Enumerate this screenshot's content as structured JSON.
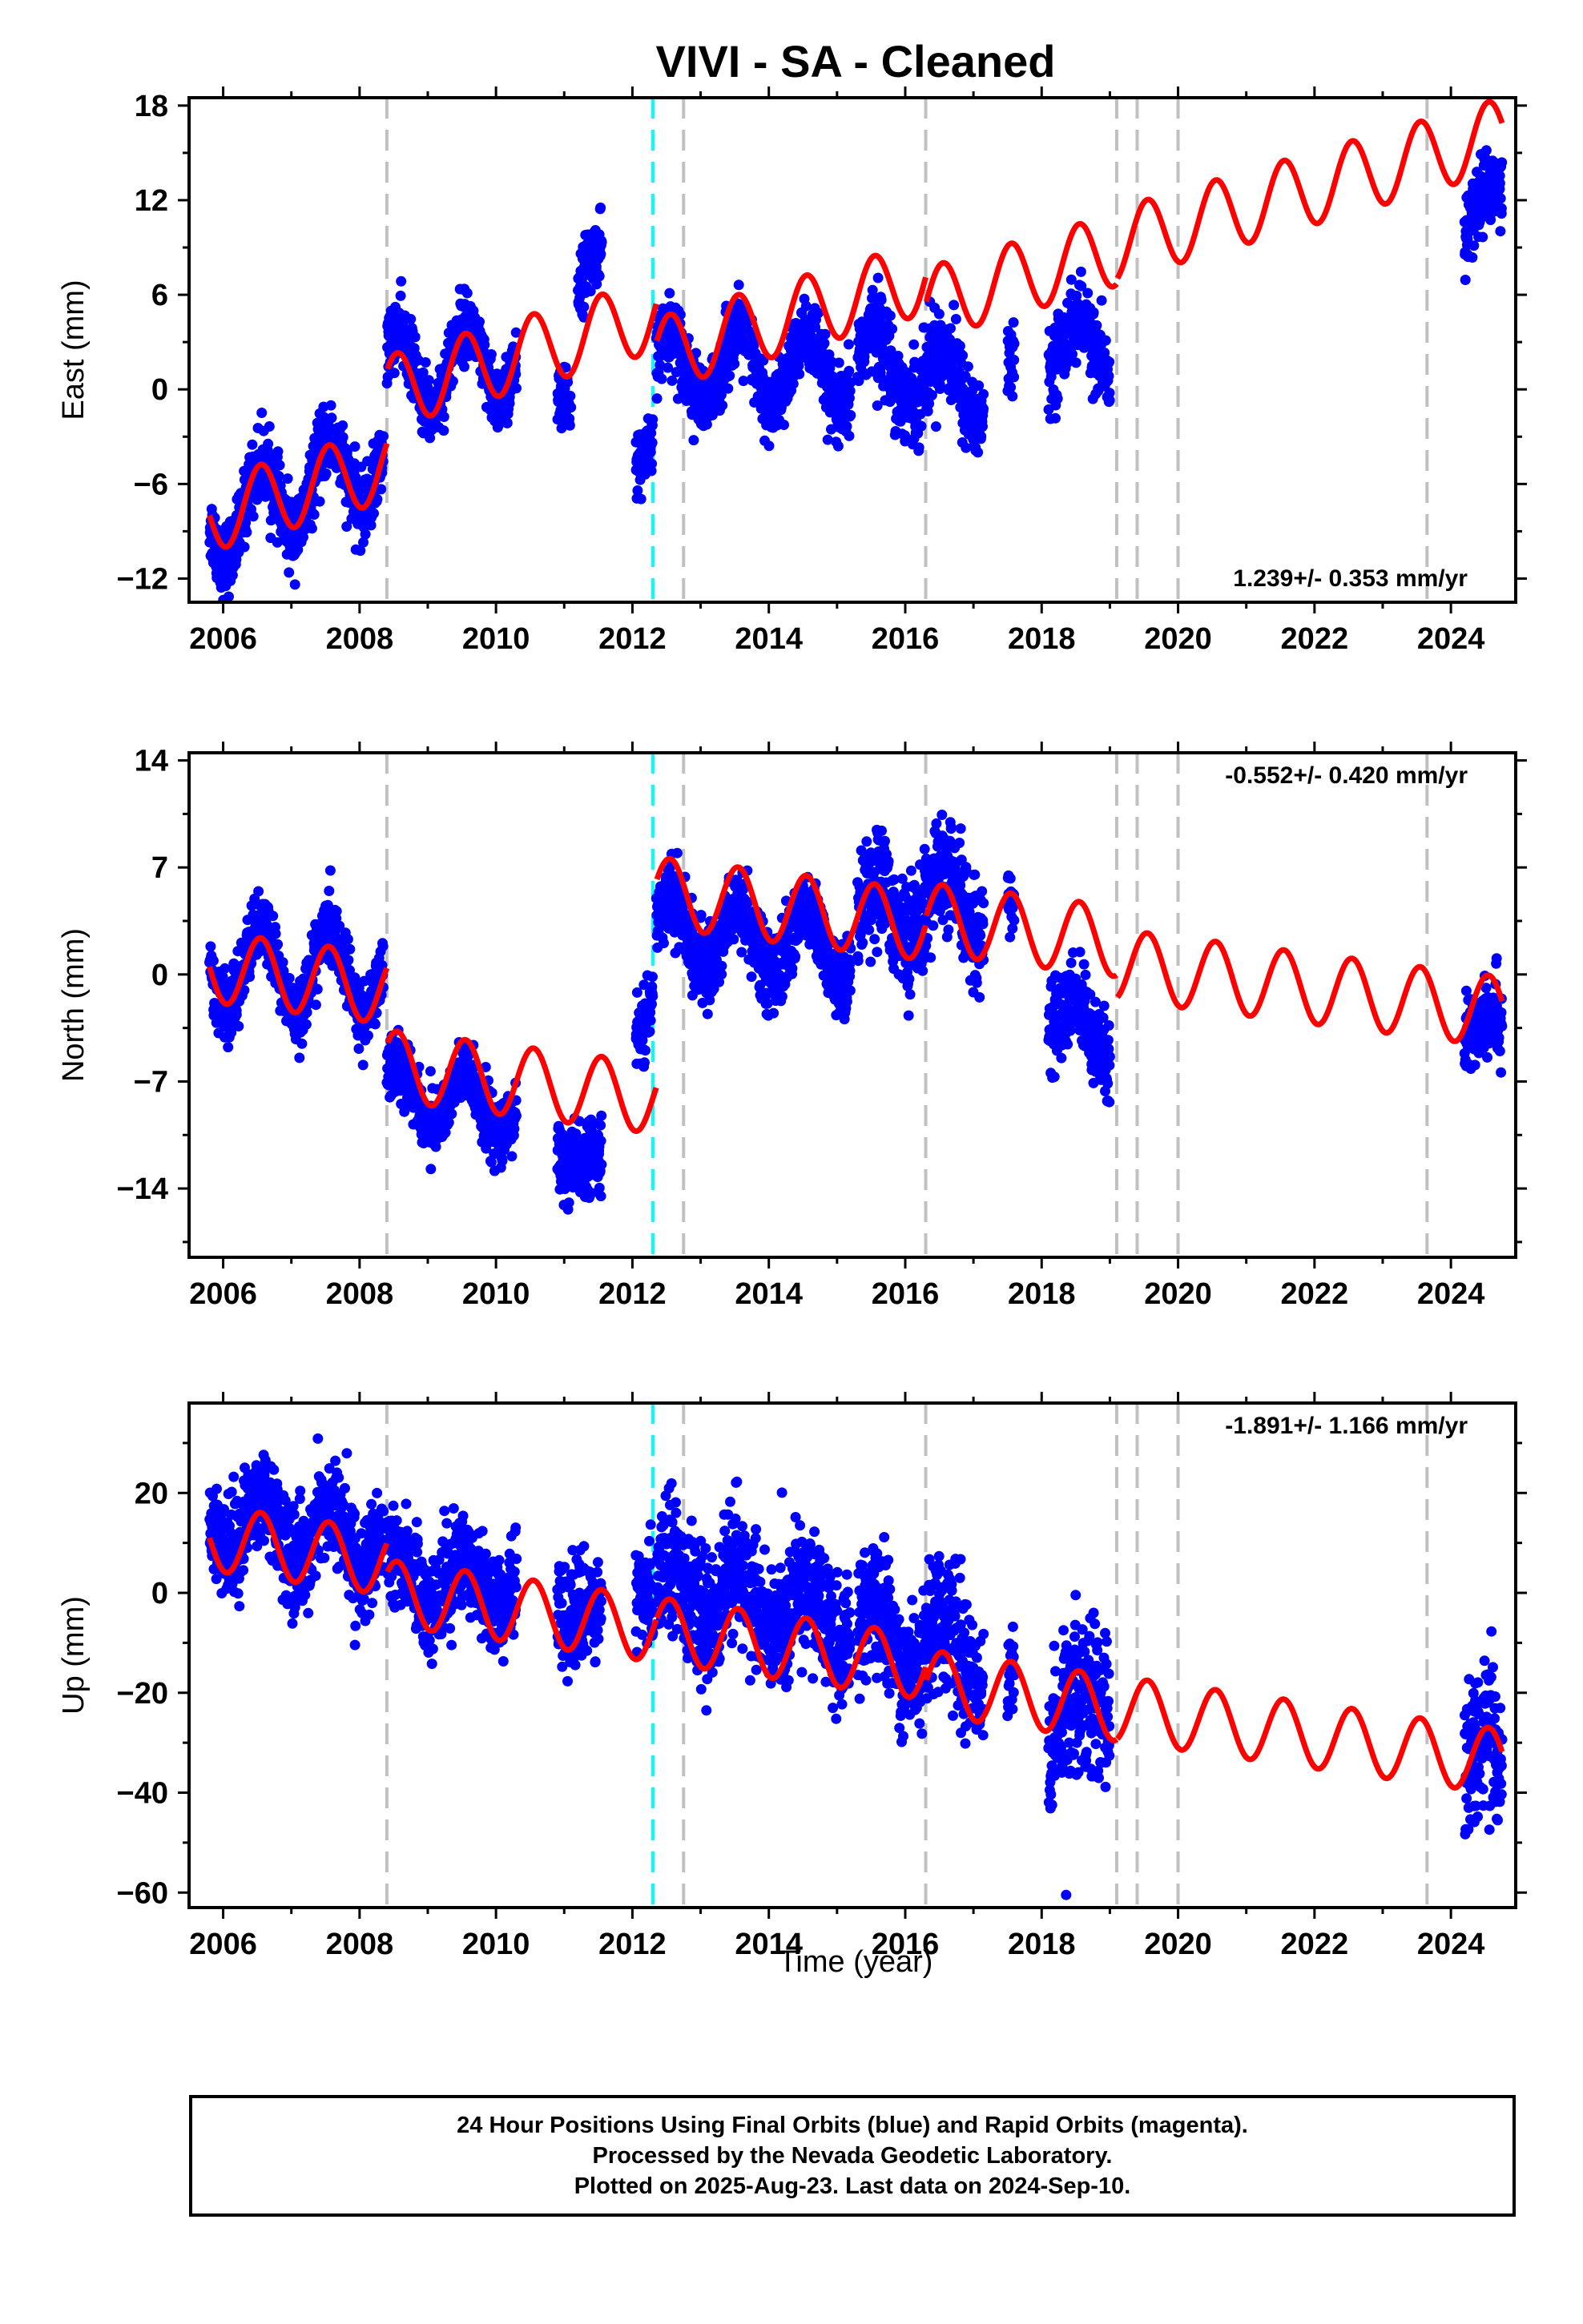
{
  "chart_data": [
    {
      "type": "scatter",
      "title": "VIVI  - SA - Cleaned",
      "ylabel": "East (mm)",
      "xlim": [
        2005.5,
        2024.95
      ],
      "ylim": [
        -13.5,
        18.5
      ],
      "x_ticks": [
        2006,
        2008,
        2010,
        2012,
        2014,
        2016,
        2018,
        2020,
        2022,
        2024
      ],
      "y_ticks": [
        -12,
        -6,
        0,
        6,
        12,
        18
      ],
      "rate_annotation": "1.239+/- 0.353 mm/yr",
      "rate_position": "bottom-right",
      "grid": false,
      "series": [
        {
          "kind": "data-blue-points",
          "color": "#0000ff",
          "segments": [
            {
              "x0": 2005.8,
              "x1": 2008.35,
              "trend": [
                -8.5,
                -4.5
              ],
              "amp": 2.6,
              "spread": 3.2
            },
            {
              "x0": 2008.4,
              "x1": 2010.3,
              "trend": [
                1.0,
                2.0
              ],
              "amp": 2.6,
              "spread": 3.0
            },
            {
              "x0": 2010.9,
              "x1": 2011.1,
              "trend": [
                -0.5,
                -0.5
              ],
              "amp": 0.5,
              "spread": 3.0
            },
            {
              "x0": 2011.2,
              "x1": 2011.55,
              "trend": [
                7.0,
                8.5
              ],
              "amp": 0.8,
              "spread": 3.0
            },
            {
              "x0": 2012.05,
              "x1": 2012.3,
              "trend": [
                -4.0,
                -4.0
              ],
              "amp": 0.5,
              "spread": 3.0
            },
            {
              "x0": 2012.35,
              "x1": 2015.2,
              "trend": [
                1.5,
                1.0
              ],
              "amp": 2.3,
              "spread": 3.2
            },
            {
              "x0": 2015.3,
              "x1": 2017.15,
              "trend": [
                2.0,
                0.0
              ],
              "amp": 2.0,
              "spread": 4.0
            },
            {
              "x0": 2017.5,
              "x1": 2017.6,
              "trend": [
                1.0,
                1.0
              ],
              "amp": 0.5,
              "spread": 3.0
            },
            {
              "x0": 2018.1,
              "x1": 2019.0,
              "trend": [
                3.0,
                2.0
              ],
              "amp": 1.8,
              "spread": 3.5
            },
            {
              "x0": 2024.2,
              "x1": 2024.75,
              "trend": [
                10.5,
                12.5
              ],
              "amp": 1.0,
              "spread": 3.5
            }
          ]
        },
        {
          "kind": "model-red-line",
          "color": "#ff0000",
          "x_range": [
            2005.8,
            2024.75
          ],
          "breaks": [
            {
              "year": 2008.4,
              "offset": 4.6
            },
            {
              "year": 2012.35,
              "offset": -2.5
            },
            {
              "year": 2016.3,
              "offset": -1.7
            },
            {
              "year": 2019.1,
              "offset": 0.3
            }
          ],
          "base": -8.0,
          "rate": 1.239,
          "seasonal_amp": 2.3
        }
      ],
      "vertical_lines": {
        "gray_dashed": [
          2008.4,
          2012.75,
          2016.3,
          2019.1,
          2019.4,
          2020.0,
          2023.65
        ],
        "cyan_dashed": [
          2012.3
        ]
      }
    },
    {
      "type": "scatter",
      "ylabel": "North (mm)",
      "xlim": [
        2005.5,
        2024.95
      ],
      "ylim": [
        -18.5,
        14.5
      ],
      "x_ticks": [
        2006,
        2008,
        2010,
        2012,
        2014,
        2016,
        2018,
        2020,
        2022,
        2024
      ],
      "y_ticks": [
        -14,
        -7,
        0,
        7,
        14
      ],
      "rate_annotation": "-0.552+/- 0.420 mm/yr",
      "rate_position": "top-right",
      "grid": false,
      "series": [
        {
          "kind": "data-blue-points",
          "color": "#0000ff",
          "segments": [
            {
              "x0": 2005.8,
              "x1": 2008.35,
              "trend": [
                0.5,
                0.0
              ],
              "amp": 2.7,
              "spread": 3.0
            },
            {
              "x0": 2008.4,
              "x1": 2010.3,
              "trend": [
                -7.5,
                -9.0
              ],
              "amp": 1.8,
              "spread": 3.0
            },
            {
              "x0": 2010.9,
              "x1": 2011.55,
              "trend": [
                -11.0,
                -13.0
              ],
              "amp": 1.0,
              "spread": 3.5
            },
            {
              "x0": 2012.05,
              "x1": 2012.3,
              "trend": [
                -3.5,
                -2.0
              ],
              "amp": 0.5,
              "spread": 3.0
            },
            {
              "x0": 2012.35,
              "x1": 2015.2,
              "trend": [
                3.0,
                1.5
              ],
              "amp": 2.2,
              "spread": 3.5
            },
            {
              "x0": 2015.3,
              "x1": 2017.15,
              "trend": [
                4.0,
                5.0
              ],
              "amp": 2.0,
              "spread": 5.0
            },
            {
              "x0": 2017.5,
              "x1": 2017.6,
              "trend": [
                4.0,
                4.0
              ],
              "amp": 0.5,
              "spread": 3.0
            },
            {
              "x0": 2018.1,
              "x1": 2019.0,
              "trend": [
                -2.0,
                -5.0
              ],
              "amp": 1.5,
              "spread": 4.0
            },
            {
              "x0": 2024.2,
              "x1": 2024.75,
              "trend": [
                -4.0,
                -3.0
              ],
              "amp": 1.0,
              "spread": 4.0
            }
          ]
        },
        {
          "kind": "model-red-line",
          "color": "#ff0000",
          "x_range": [
            2005.8,
            2024.75
          ],
          "breaks": [
            {
              "year": 2008.4,
              "offset": -5.0
            },
            {
              "year": 2012.35,
              "offset": 13.5
            },
            {
              "year": 2016.3,
              "offset": 0.5
            },
            {
              "year": 2019.1,
              "offset": -1.5
            }
          ],
          "base": 0.5,
          "rate": -0.552,
          "seasonal_amp": 2.3
        }
      ],
      "vertical_lines": {
        "gray_dashed": [
          2008.4,
          2012.75,
          2016.3,
          2019.1,
          2019.4,
          2020.0,
          2023.65
        ],
        "cyan_dashed": [
          2012.3
        ]
      }
    },
    {
      "type": "scatter",
      "ylabel": "Up (mm)",
      "xlabel": "Time (year)",
      "xlim": [
        2005.5,
        2024.95
      ],
      "ylim": [
        -63,
        38
      ],
      "x_ticks": [
        2006,
        2008,
        2010,
        2012,
        2014,
        2016,
        2018,
        2020,
        2022,
        2024
      ],
      "y_ticks": [
        -60,
        -40,
        -20,
        0,
        20
      ],
      "rate_annotation": "-1.891+/- 1.166 mm/yr",
      "rate_position": "top-right",
      "grid": false,
      "series": [
        {
          "kind": "data-blue-points",
          "color": "#0000ff",
          "segments": [
            {
              "x0": 2005.8,
              "x1": 2008.35,
              "trend": [
                14.0,
                10.0
              ],
              "amp": 6.0,
              "spread": 14.0
            },
            {
              "x0": 2008.4,
              "x1": 2010.3,
              "trend": [
                3.0,
                2.0
              ],
              "amp": 5.0,
              "spread": 14.0
            },
            {
              "x0": 2010.9,
              "x1": 2011.55,
              "trend": [
                0.0,
                -6.0
              ],
              "amp": 3.0,
              "spread": 14.0
            },
            {
              "x0": 2012.05,
              "x1": 2012.3,
              "trend": [
                0.0,
                0.0
              ],
              "amp": 2.0,
              "spread": 14.0
            },
            {
              "x0": 2012.35,
              "x1": 2015.2,
              "trend": [
                2.0,
                -6.0
              ],
              "amp": 6.0,
              "spread": 18.0
            },
            {
              "x0": 2015.3,
              "x1": 2017.15,
              "trend": [
                -8.0,
                -12.0
              ],
              "amp": 6.0,
              "spread": 18.0
            },
            {
              "x0": 2017.5,
              "x1": 2017.6,
              "trend": [
                -18.0,
                -18.0
              ],
              "amp": 2.0,
              "spread": 14.0
            },
            {
              "x0": 2018.1,
              "x1": 2019.0,
              "trend": [
                -28.0,
                -20.0
              ],
              "amp": 6.0,
              "spread": 22.0
            },
            {
              "x0": 2024.2,
              "x1": 2024.75,
              "trend": [
                -30.0,
                -35.0
              ],
              "amp": 4.0,
              "spread": 22.0
            }
          ]
        },
        {
          "kind": "model-red-line",
          "color": "#ff0000",
          "x_range": [
            2005.8,
            2024.75
          ],
          "breaks": [
            {
              "year": 2008.4,
              "offset": -6.0
            },
            {
              "year": 2012.35,
              "offset": 0.0
            },
            {
              "year": 2016.3,
              "offset": -3.0
            },
            {
              "year": 2019.1,
              "offset": 0.0
            }
          ],
          "base": 11.0,
          "rate": -1.891,
          "seasonal_amp": 6.5
        }
      ],
      "vertical_lines": {
        "gray_dashed": [
          2008.4,
          2012.75,
          2016.3,
          2019.1,
          2019.4,
          2020.0,
          2023.65
        ],
        "cyan_dashed": [
          2012.3
        ]
      }
    }
  ],
  "footer": {
    "line1": "24 Hour Positions Using Final Orbits (blue) and Rapid Orbits (magenta).",
    "line2": "Processed by the Nevada Geodetic Laboratory.",
    "line3": "Plotted on 2025-Aug-23. Last data on 2024-Sep-10."
  },
  "colors": {
    "data": "#0000ff",
    "model": "#ff0000",
    "steps": "#c0c0c0",
    "eq_step": "#00ffff"
  }
}
